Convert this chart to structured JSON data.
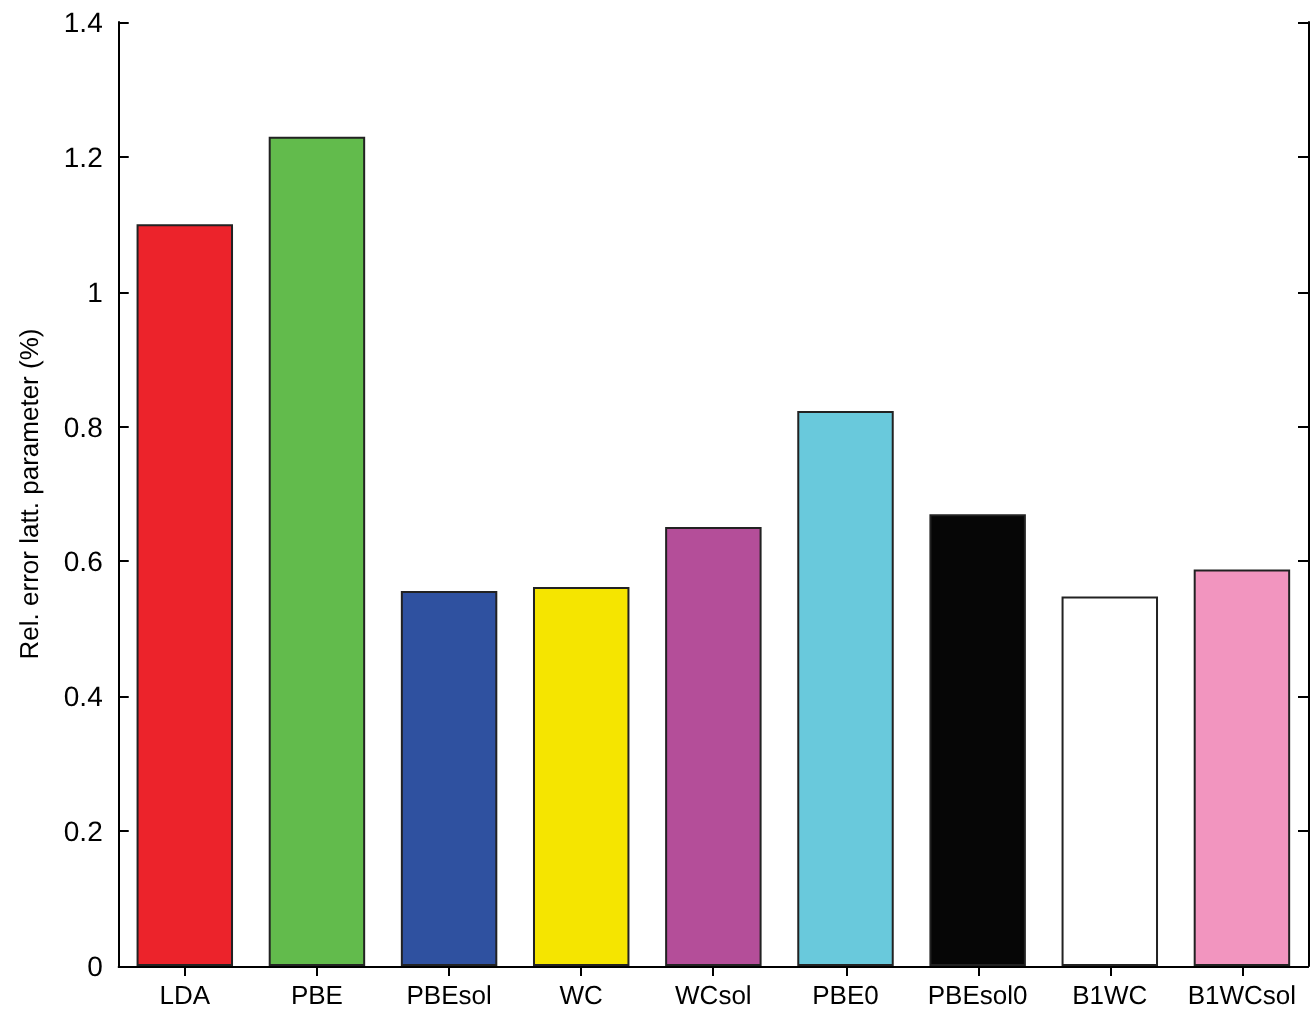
{
  "chart_data": {
    "type": "bar",
    "ylabel": "Rel. error latt. parameter (%)",
    "categories": [
      "LDA",
      "PBE",
      "PBEsol",
      "WC",
      "WCsol",
      "PBE0",
      "PBEsol0",
      "B1WC",
      "B1WCsol"
    ],
    "values": [
      1.1,
      1.23,
      0.556,
      0.562,
      0.651,
      0.823,
      0.67,
      0.548,
      0.588
    ],
    "colors": [
      "#ec232b",
      "#62bb4c",
      "#2f51a0",
      "#f5e500",
      "#b44e99",
      "#69c9dc",
      "#060606",
      "#ffffff",
      "#f295bf"
    ],
    "ylim": [
      0,
      1.4
    ],
    "yticks": [
      0,
      0.2,
      0.4,
      0.6,
      0.8,
      1,
      1.2,
      1.4
    ],
    "grid": false
  }
}
